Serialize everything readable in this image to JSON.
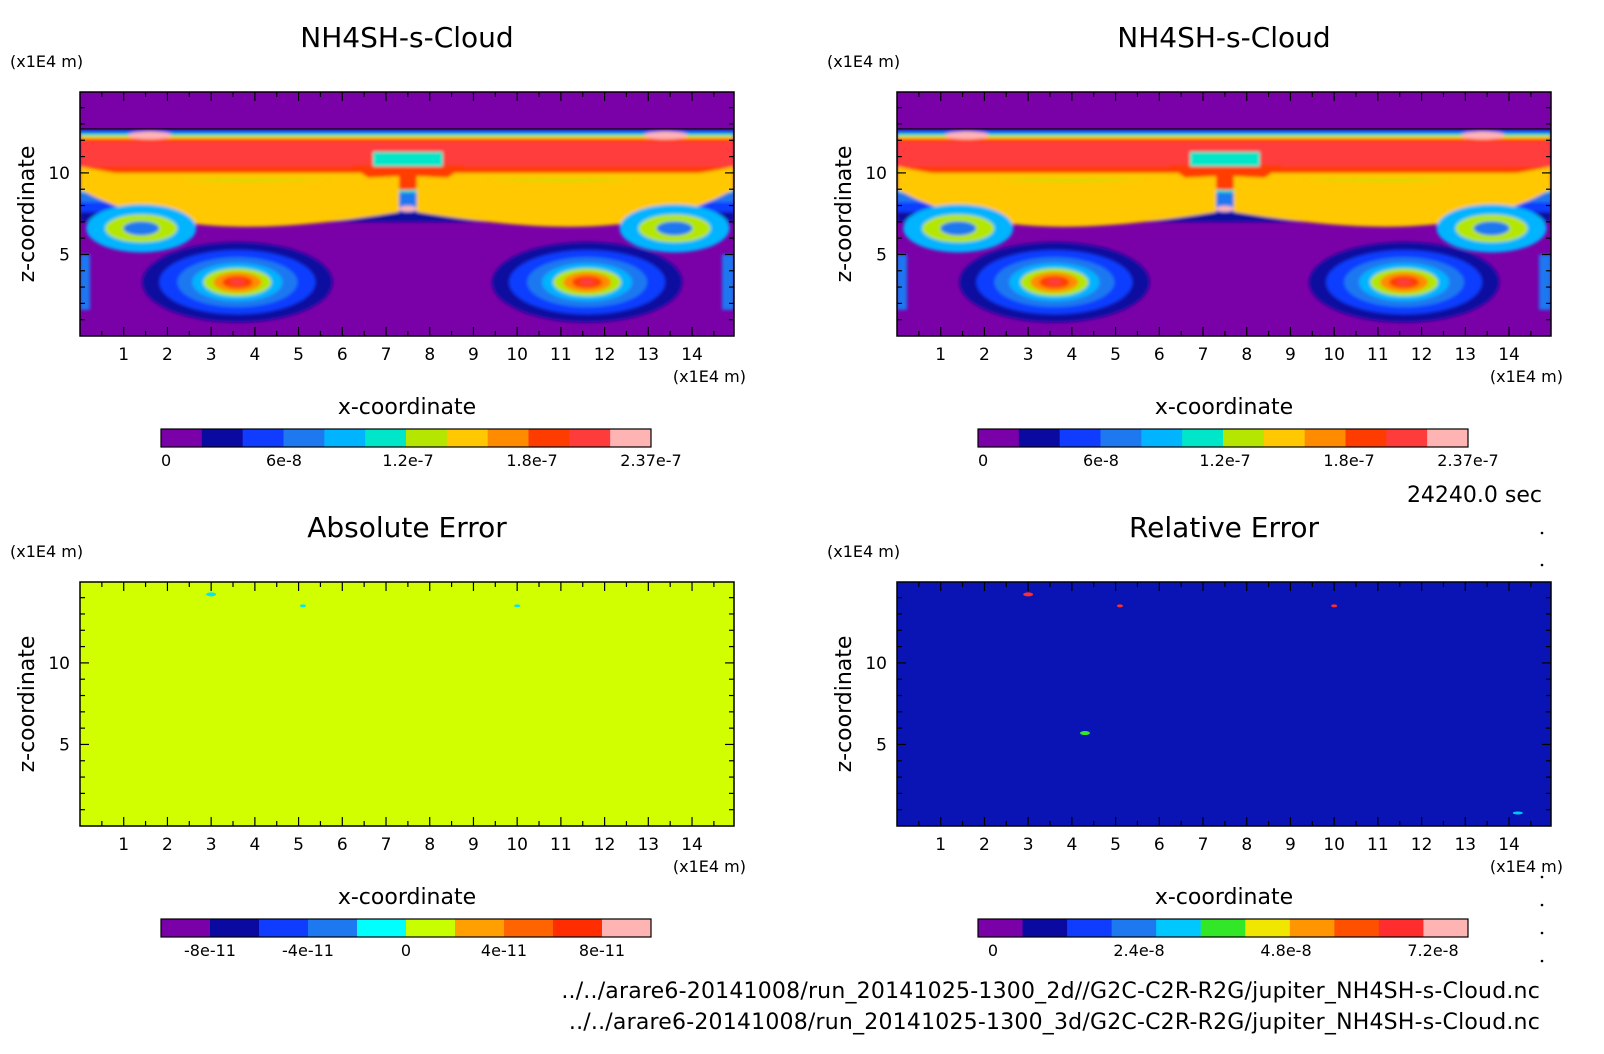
{
  "time_label": "24240.0 sec",
  "file_paths": [
    "../../arare6-20141008/run_20141025-1300_2d//G2C-C2R-R2G/jupiter_NH4SH-s-Cloud.nc",
    "../../arare6-20141008/run_20141025-1300_3d/G2C-C2R-R2G/jupiter_NH4SH-s-Cloud.nc"
  ],
  "chart_data": [
    {
      "type": "heatmap",
      "title": "NH4SH-s-Cloud",
      "xlabel": "x-coordinate",
      "ylabel": "z-coordinate",
      "x_unit": "(x1E4 m)",
      "y_unit": "(x1E4 m)",
      "xlim": [
        0,
        14.96
      ],
      "ylim": [
        0,
        14.96
      ],
      "x_ticks": [
        "1",
        "2",
        "3",
        "4",
        "5",
        "6",
        "7",
        "8",
        "9",
        "10",
        "11",
        "12",
        "13",
        "14"
      ],
      "y_ticks": [
        "5",
        "10"
      ],
      "colorbar": {
        "colors": [
          "#7a00a8",
          "#0a0aa0",
          "#0f3cff",
          "#1e78f0",
          "#00b4ff",
          "#00e6c8",
          "#b4e600",
          "#ffc800",
          "#ff8c00",
          "#ff3c00",
          "#ff3c3c",
          "#ffb4b4"
        ],
        "tick_labels": [
          "0",
          "6e-8",
          "1.2e-7",
          "1.8e-7",
          "2.37e-7"
        ]
      }
    },
    {
      "type": "heatmap",
      "title": "NH4SH-s-Cloud",
      "xlabel": "x-coordinate",
      "ylabel": "z-coordinate",
      "x_unit": "(x1E4 m)",
      "y_unit": "(x1E4 m)",
      "xlim": [
        0,
        14.96
      ],
      "ylim": [
        0,
        14.96
      ],
      "x_ticks": [
        "1",
        "2",
        "3",
        "4",
        "5",
        "6",
        "7",
        "8",
        "9",
        "10",
        "11",
        "12",
        "13",
        "14"
      ],
      "y_ticks": [
        "5",
        "10"
      ],
      "colorbar": {
        "colors": [
          "#7a00a8",
          "#0a0aa0",
          "#0f3cff",
          "#1e78f0",
          "#00b4ff",
          "#00e6c8",
          "#b4e600",
          "#ffc800",
          "#ff8c00",
          "#ff3c00",
          "#ff3c3c",
          "#ffb4b4"
        ],
        "tick_labels": [
          "0",
          "6e-8",
          "1.2e-7",
          "1.8e-7",
          "2.37e-7"
        ]
      }
    },
    {
      "type": "heatmap",
      "title": "Absolute Error",
      "xlabel": "x-coordinate",
      "ylabel": "z-coordinate",
      "x_unit": "(x1E4 m)",
      "y_unit": "(x1E4 m)",
      "xlim": [
        0,
        14.96
      ],
      "ylim": [
        0,
        14.96
      ],
      "x_ticks": [
        "1",
        "2",
        "3",
        "4",
        "5",
        "6",
        "7",
        "8",
        "9",
        "10",
        "11",
        "12",
        "13",
        "14"
      ],
      "y_ticks": [
        "5",
        "10"
      ],
      "field_color": "#d2ff00",
      "colorbar": {
        "colors": [
          "#7a00a8",
          "#0a0aa0",
          "#0f3cff",
          "#1e78f0",
          "#00ffff",
          "#c8ff00",
          "#ffa000",
          "#ff6400",
          "#ff2d00",
          "#ffb4b4"
        ],
        "tick_labels": [
          "-8e-11",
          "-4e-11",
          "0",
          "4e-11",
          "8e-11"
        ]
      }
    },
    {
      "type": "heatmap",
      "title": "Relative Error",
      "xlabel": "x-coordinate",
      "ylabel": "z-coordinate",
      "x_unit": "(x1E4 m)",
      "y_unit": "(x1E4 m)",
      "xlim": [
        0,
        14.96
      ],
      "ylim": [
        0,
        14.96
      ],
      "x_ticks": [
        "1",
        "2",
        "3",
        "4",
        "5",
        "6",
        "7",
        "8",
        "9",
        "10",
        "11",
        "12",
        "13",
        "14"
      ],
      "y_ticks": [
        "5",
        "10"
      ],
      "field_color": "#0a14b4",
      "colorbar": {
        "colors": [
          "#7a00a8",
          "#0a0aa0",
          "#0f3cff",
          "#1e78f0",
          "#00c8ff",
          "#32e628",
          "#f0e600",
          "#ff9600",
          "#ff5000",
          "#ff2d2d",
          "#ffb4b4"
        ],
        "tick_labels": [
          "0",
          "2.4e-8",
          "4.8e-8",
          "7.2e-8"
        ]
      }
    }
  ]
}
